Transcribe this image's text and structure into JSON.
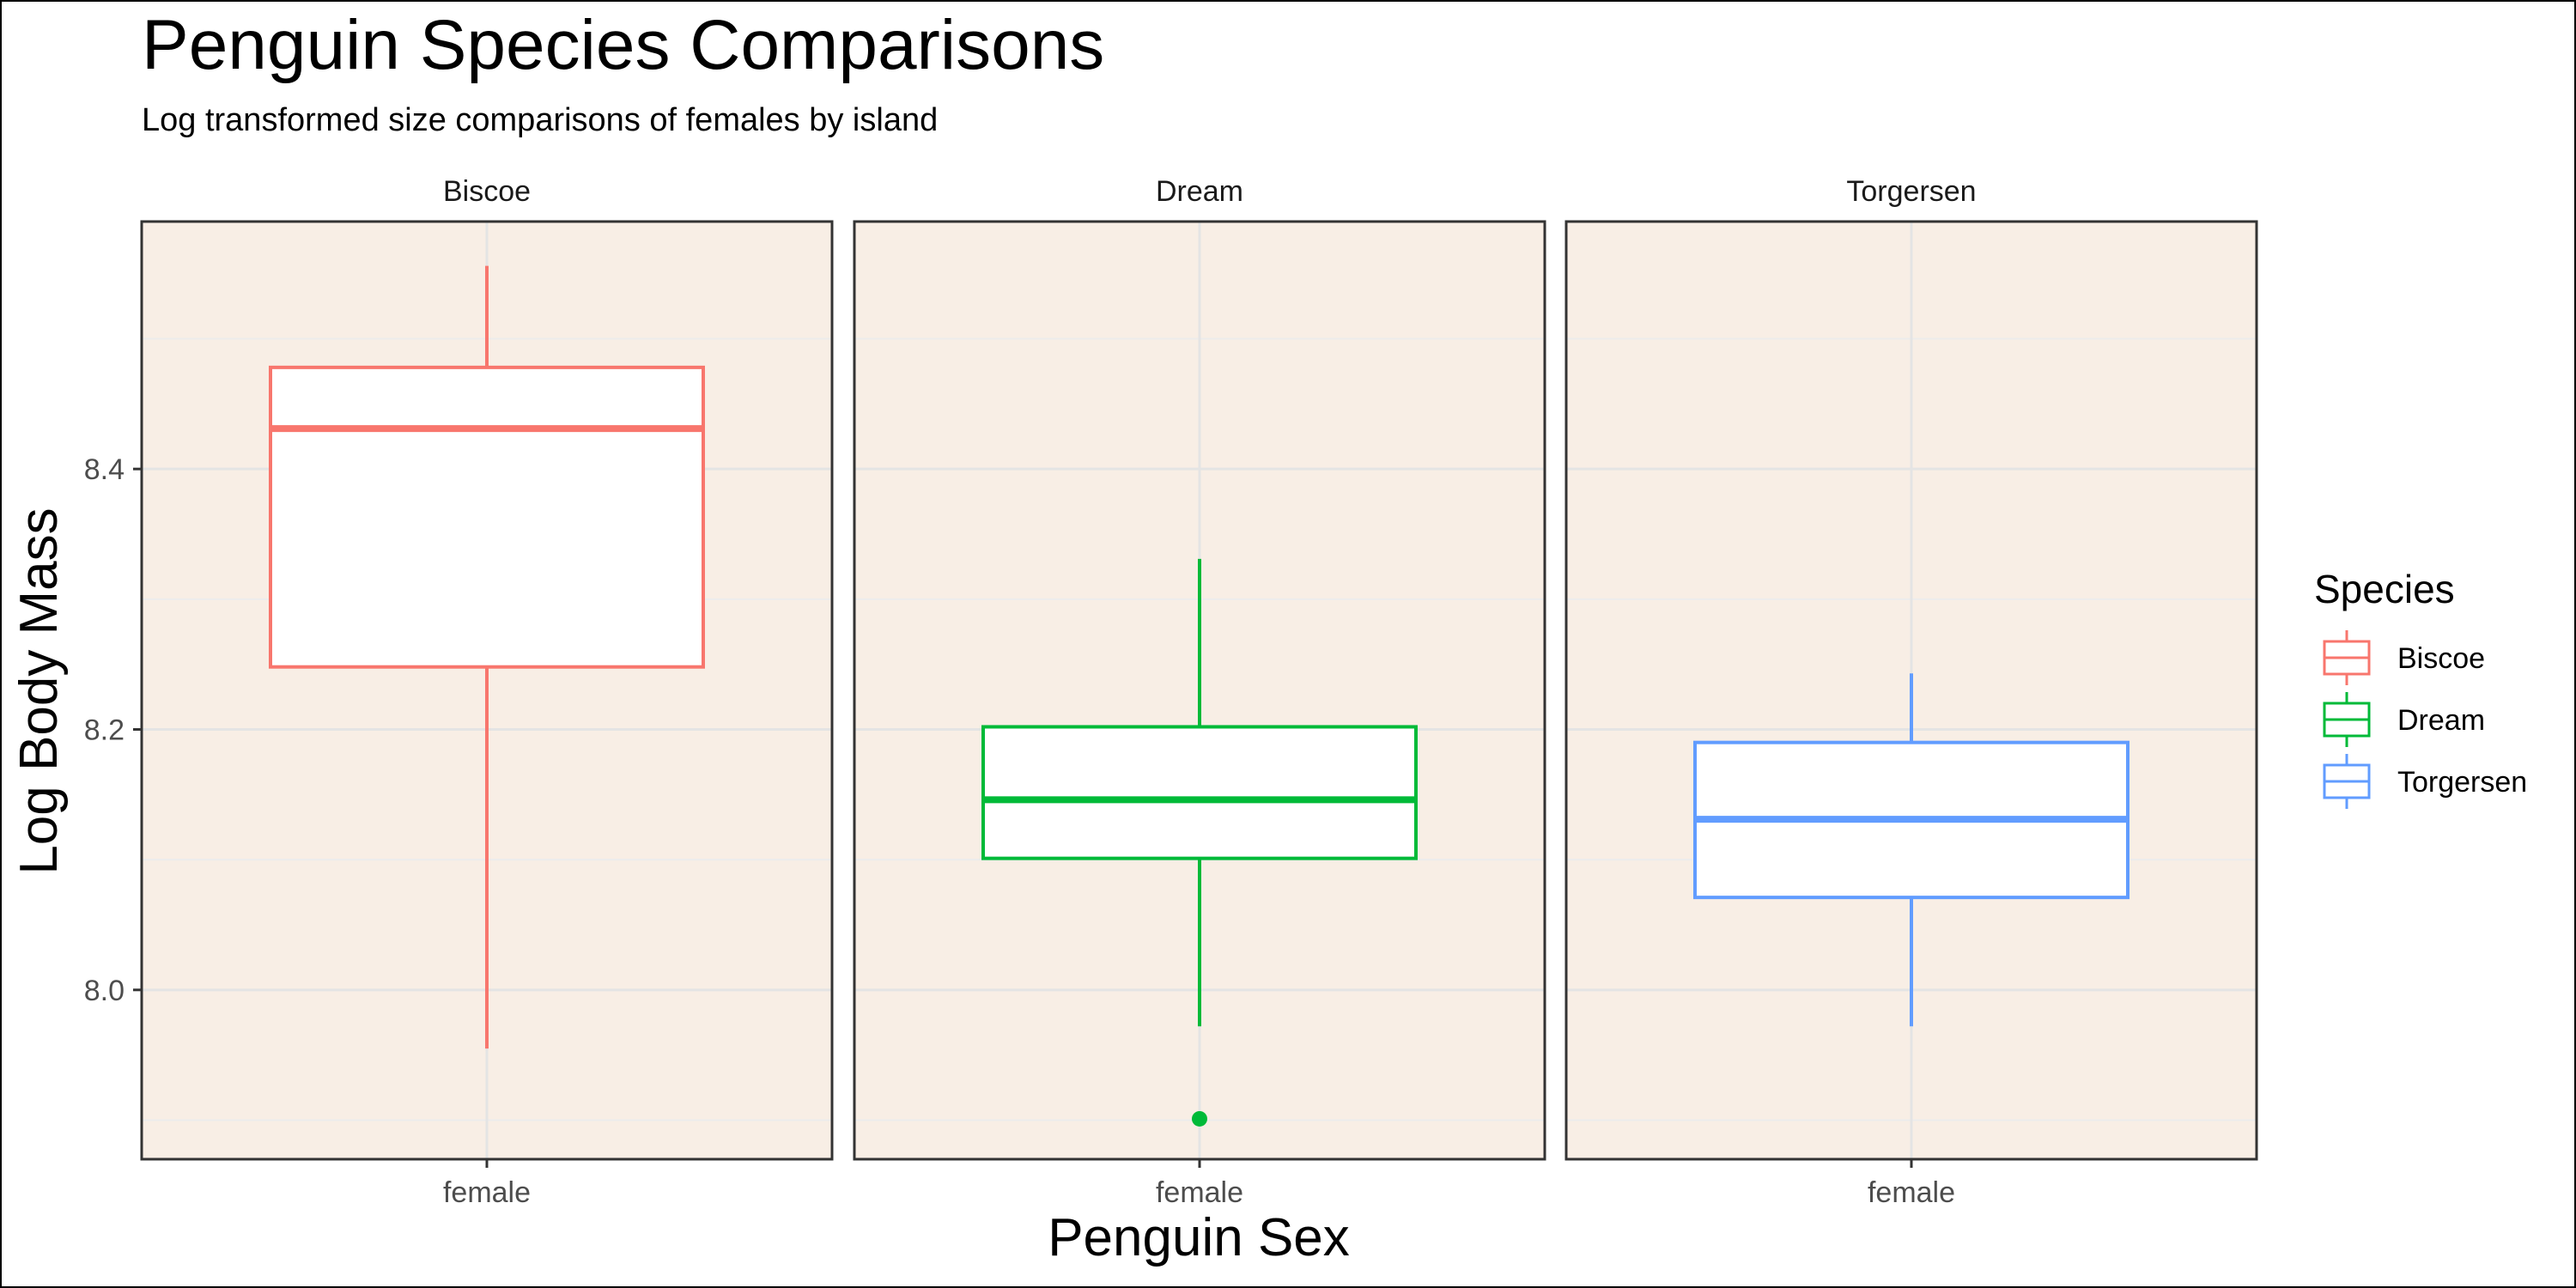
{
  "chart_data": {
    "type": "boxplot",
    "title": "Penguin Species Comparisons",
    "subtitle": "Log transformed size comparisons of females by island",
    "xlabel": "Penguin Sex",
    "ylabel": "Log Body Mass",
    "ylim": [
      7.87,
      8.59
    ],
    "yticks": [
      8.0,
      8.2,
      8.4
    ],
    "ytick_labels": [
      "8.0",
      "8.2",
      "8.4"
    ],
    "facets": [
      "Biscoe",
      "Dream",
      "Torgersen"
    ],
    "category": "female",
    "grid": true,
    "panel_background": "#f8eee5",
    "legend": {
      "title": "Species",
      "position": "right"
    },
    "series": [
      {
        "name": "Biscoe",
        "facet": "Biscoe",
        "color": "#F8766D",
        "min": 7.955,
        "q1": 8.248,
        "median": 8.431,
        "q3": 8.478,
        "max": 8.556,
        "outliers": []
      },
      {
        "name": "Dream",
        "facet": "Dream",
        "color": "#00BA38",
        "min": 7.972,
        "q1": 8.101,
        "median": 8.146,
        "q3": 8.202,
        "max": 8.331,
        "outliers": [
          7.901
        ]
      },
      {
        "name": "Torgersen",
        "facet": "Torgersen",
        "color": "#619CFF",
        "min": 7.972,
        "q1": 8.071,
        "median": 8.131,
        "q3": 8.19,
        "max": 8.243,
        "outliers": []
      }
    ]
  }
}
